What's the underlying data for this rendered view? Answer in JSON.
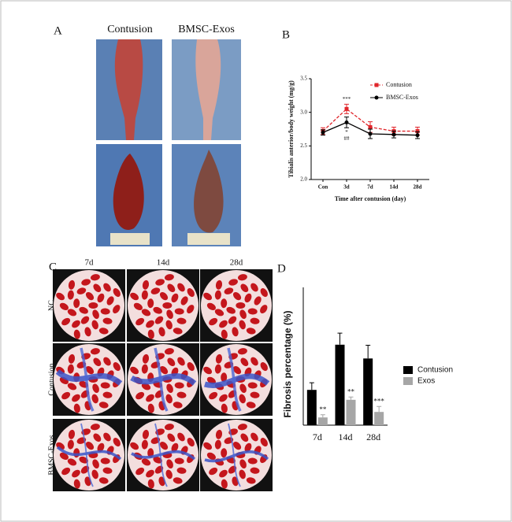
{
  "panels": {
    "A": {
      "label": "A",
      "columns": [
        "Contusion",
        "BMSC-Exos"
      ]
    },
    "C": {
      "label": "C",
      "columns": [
        "7d",
        "14d",
        "28d"
      ],
      "rows": [
        "NC",
        "Contusion",
        "BMSC-Exos"
      ]
    }
  },
  "chart_data": [
    {
      "type": "line",
      "label": "B",
      "categories": [
        "Con",
        "3d",
        "7d",
        "14d",
        "28d"
      ],
      "ylabel": "Tibialis anterior/body weight (mg/g)",
      "xlabel": "Time after contusion (day)",
      "ylim": [
        2.0,
        3.5
      ],
      "yticks": [
        {
          "value": 2.0,
          "label": "2.0"
        },
        {
          "value": 2.5,
          "label": "2.5"
        },
        {
          "value": 3.0,
          "label": "3.0"
        },
        {
          "value": 3.5,
          "label": "3.5"
        }
      ],
      "legend": "upper right",
      "series": [
        {
          "name": "Contusion",
          "color": "#e0262b",
          "dashed": true,
          "values": [
            2.72,
            3.05,
            2.78,
            2.72,
            2.72
          ],
          "errors": [
            0.05,
            0.07,
            0.08,
            0.06,
            0.06
          ],
          "annotations": [
            [],
            [
              "***"
            ],
            [],
            [],
            []
          ]
        },
        {
          "name": "BMSC-Exos",
          "color": "#000000",
          "dashed": false,
          "values": [
            2.7,
            2.85,
            2.68,
            2.67,
            2.66
          ],
          "errors": [
            0.04,
            0.08,
            0.07,
            0.05,
            0.05
          ],
          "annotations": [
            [],
            [
              "*",
              "##"
            ],
            [],
            [],
            []
          ]
        }
      ]
    },
    {
      "type": "bar",
      "label": "D",
      "categories": [
        "7d",
        "14d",
        "28d"
      ],
      "ylabel": "Fibrosis percentage (%)",
      "ylim": [
        0,
        25
      ],
      "legend": "right",
      "series": [
        {
          "name": "Contusion",
          "color": "#000000",
          "values": [
            6.4,
            14.6,
            12.1
          ],
          "errors": [
            1.3,
            2.1,
            2.4
          ]
        },
        {
          "name": "Exos",
          "color": "#a6a6a6",
          "values": [
            1.4,
            4.6,
            2.4
          ],
          "errors": [
            0.5,
            0.5,
            1.0
          ],
          "annotations": [
            "**",
            "**",
            "***"
          ]
        }
      ]
    }
  ]
}
